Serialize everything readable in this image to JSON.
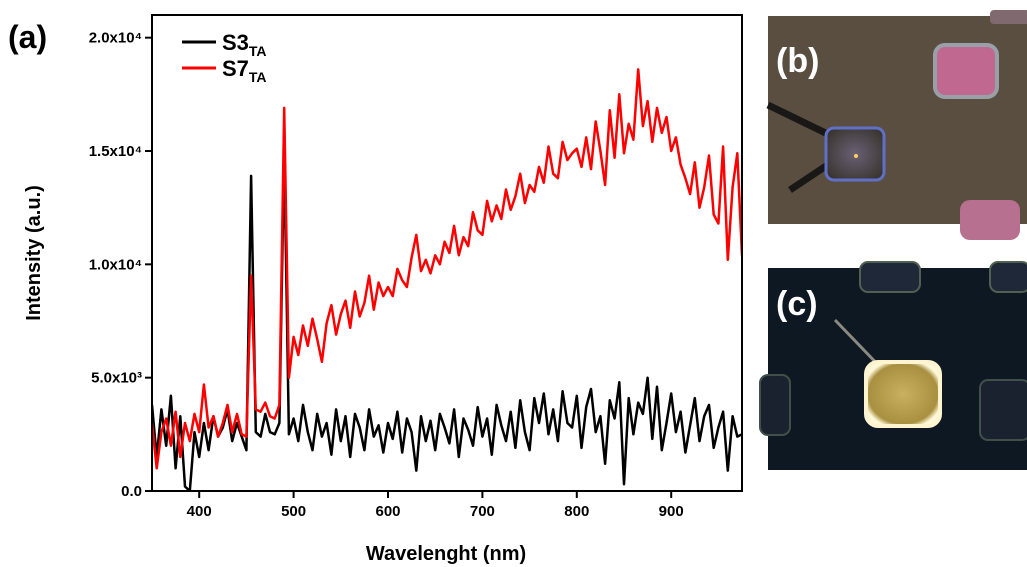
{
  "chart_data": {
    "type": "line",
    "xlabel": "Wavelenght (nm)",
    "ylabel": "Intensity (a.u.)",
    "x": [
      350,
      355,
      360,
      365,
      370,
      375,
      380,
      385,
      390,
      395,
      400,
      405,
      410,
      415,
      420,
      425,
      430,
      435,
      440,
      445,
      450,
      455,
      460,
      465,
      470,
      475,
      480,
      485,
      490,
      495,
      500,
      505,
      510,
      515,
      520,
      525,
      530,
      535,
      540,
      545,
      550,
      555,
      560,
      565,
      570,
      575,
      580,
      585,
      590,
      595,
      600,
      605,
      610,
      615,
      620,
      625,
      630,
      635,
      640,
      645,
      650,
      655,
      660,
      665,
      670,
      675,
      680,
      685,
      690,
      695,
      700,
      705,
      710,
      715,
      720,
      725,
      730,
      735,
      740,
      745,
      750,
      755,
      760,
      765,
      770,
      775,
      780,
      785,
      790,
      795,
      800,
      805,
      810,
      815,
      820,
      825,
      830,
      835,
      840,
      845,
      850,
      855,
      860,
      865,
      870,
      875,
      880,
      885,
      890,
      895,
      900,
      905,
      910,
      915,
      920,
      925,
      930,
      935,
      940,
      945,
      950,
      955,
      960,
      965,
      970,
      975
    ],
    "series": [
      {
        "name": "S3",
        "name_subscript": "TA",
        "color": "#000000",
        "values": [
          3800,
          1500,
          3600,
          2000,
          4200,
          1000,
          3300,
          200,
          0,
          2600,
          1500,
          3000,
          1800,
          3300,
          2400,
          2800,
          3600,
          2200,
          3000,
          2400,
          1800,
          13900,
          2600,
          2400,
          3400,
          2600,
          2500,
          3000,
          15100,
          2500,
          3200,
          2200,
          3800,
          2600,
          1800,
          3400,
          2400,
          3000,
          1600,
          3600,
          2200,
          3300,
          1500,
          3400,
          2800,
          1800,
          3600,
          2400,
          2900,
          1700,
          3000,
          2300,
          3500,
          1700,
          3200,
          2600,
          900,
          3300,
          2200,
          3100,
          1800,
          3400,
          2800,
          2100,
          3600,
          1500,
          3200,
          2700,
          2000,
          3700,
          2400,
          3200,
          1600,
          3800,
          2900,
          2200,
          3500,
          1900,
          4000,
          2600,
          1800,
          4100,
          3000,
          4300,
          2500,
          3600,
          2200,
          4400,
          3000,
          2800,
          4200,
          1900,
          3700,
          4500,
          2600,
          3300,
          1200,
          4000,
          3200,
          4800,
          300,
          4100,
          2500,
          3900,
          3400,
          5000,
          2300,
          4600,
          1800,
          3000,
          4300,
          2600,
          3500,
          1700,
          2900,
          4100,
          2200,
          3300,
          3800,
          1900,
          2800,
          3500,
          900,
          3300,
          2400,
          2500
        ]
      },
      {
        "name": "S7",
        "name_subscript": "TA",
        "color": "#ff0000",
        "values": [
          3000,
          1000,
          2600,
          3200,
          2000,
          3500,
          1500,
          3000,
          2200,
          3400,
          2600,
          4700,
          2800,
          3300,
          2400,
          3000,
          3800,
          2600,
          3400,
          2500,
          2400,
          9500,
          3600,
          3500,
          3900,
          3300,
          3200,
          3800,
          16900,
          5000,
          6800,
          6000,
          7300,
          6400,
          7600,
          6700,
          5700,
          7400,
          8200,
          6900,
          7800,
          8400,
          7200,
          8800,
          7700,
          8300,
          9500,
          8000,
          9200,
          8600,
          9000,
          8600,
          9800,
          9300,
          9000,
          10300,
          11300,
          9700,
          10200,
          9600,
          10400,
          10000,
          11000,
          10500,
          11700,
          10400,
          11200,
          10800,
          12300,
          11500,
          11300,
          12800,
          11900,
          12600,
          12000,
          13300,
          12400,
          13000,
          14000,
          12700,
          13500,
          13200,
          14300,
          13600,
          15200,
          14000,
          13800,
          15400,
          14600,
          14900,
          15100,
          14300,
          15600,
          14200,
          16300,
          15000,
          13500,
          16800,
          14700,
          17500,
          14900,
          16200,
          15500,
          18600,
          16100,
          17200,
          15400,
          16900,
          15800,
          16500,
          15000,
          15600,
          14400,
          13800,
          13100,
          14500,
          12500,
          13400,
          14800,
          12200,
          11800,
          15200,
          10200,
          13400,
          14900,
          10400
        ]
      }
    ],
    "xlim": [
      350,
      975
    ],
    "ylim": [
      0,
      21000
    ],
    "xticks": [
      400,
      500,
      600,
      700,
      800,
      900
    ],
    "yticks": [
      {
        "value": 0,
        "label": "0.0"
      },
      {
        "value": 5000,
        "label": "5.0x10³"
      },
      {
        "value": 10000,
        "label": "1.0x10⁴"
      },
      {
        "value": 15000,
        "label": "1.5x10⁴"
      },
      {
        "value": 20000,
        "label": "2.0x10⁴"
      }
    ],
    "legend": "upper left"
  },
  "panels": {
    "a": "(a)",
    "b": "(b)",
    "c": "(c)"
  }
}
